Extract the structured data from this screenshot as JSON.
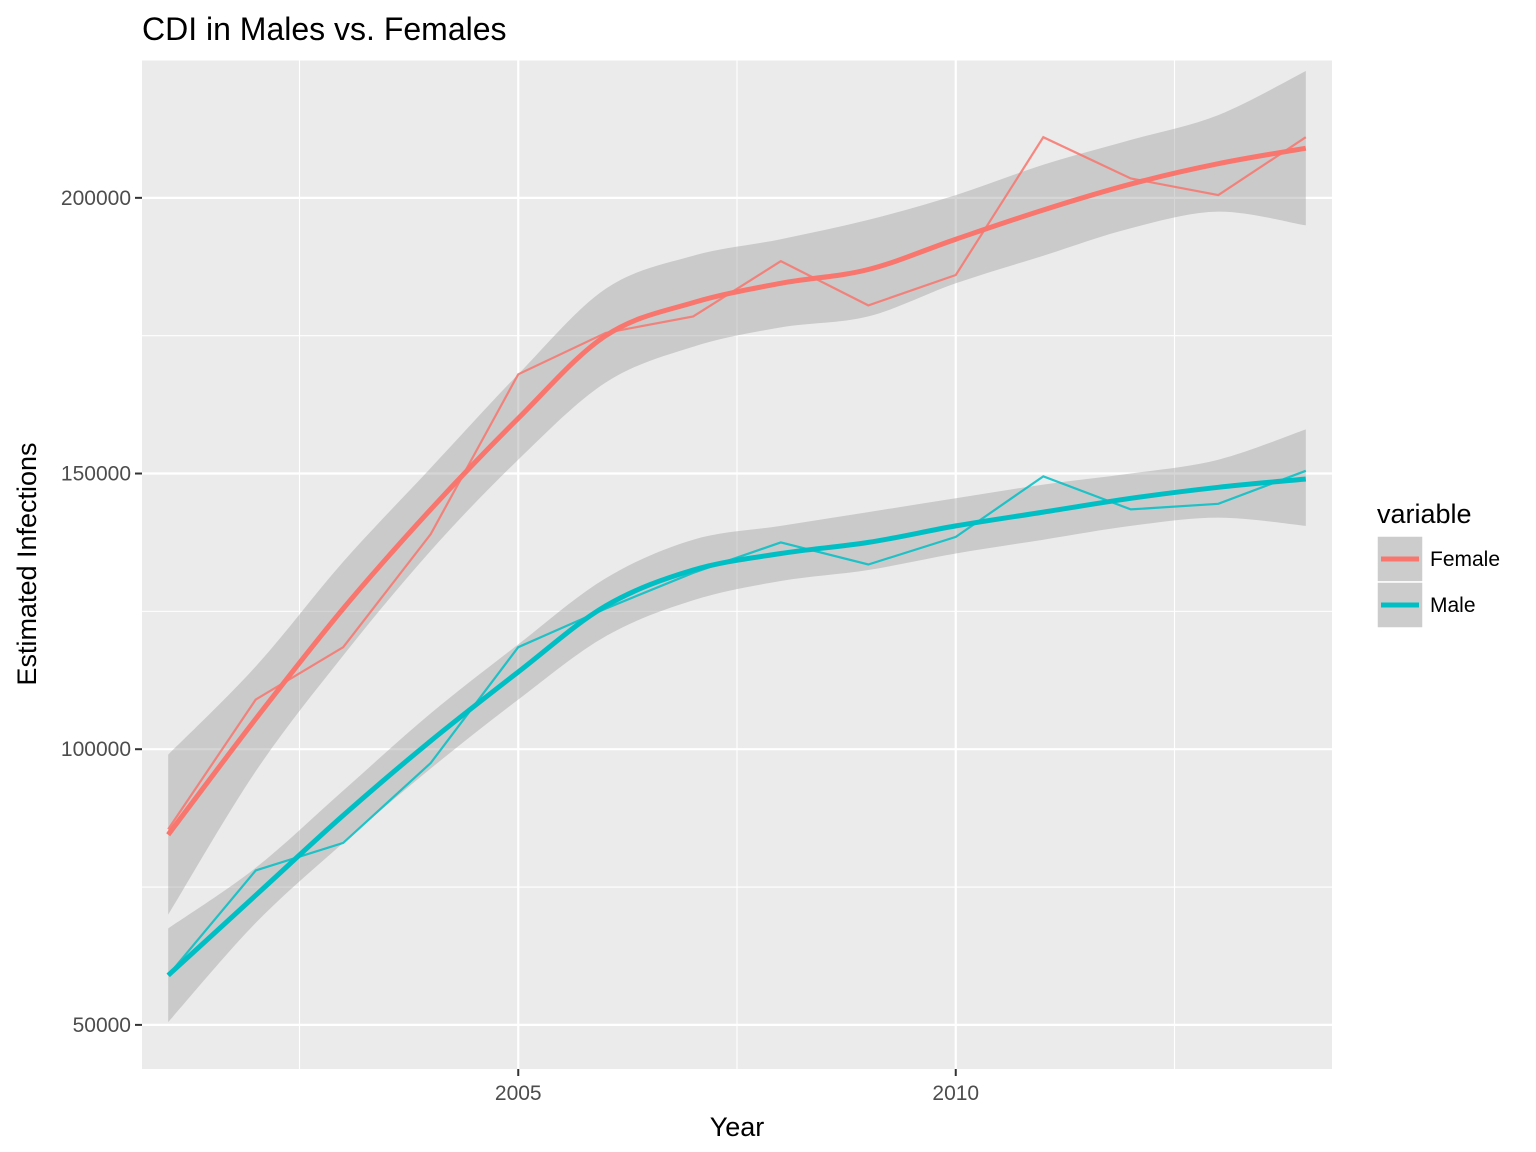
{
  "chart_data": {
    "type": "line",
    "title": "CDI in Males vs. Females",
    "xlabel": "Year",
    "ylabel": "Estimated Infections",
    "xlim": [
      2000.7,
      2014.3
    ],
    "ylim": [
      42000,
      225000
    ],
    "x_ticks": [
      2005,
      2010
    ],
    "x_tick_labels": [
      "2005",
      "2010"
    ],
    "x_minor_ticks": [
      2002.5,
      2007.5,
      2012.5
    ],
    "y_ticks": [
      50000,
      100000,
      150000,
      200000
    ],
    "y_tick_labels": [
      "50000",
      "100000",
      "150000",
      "200000"
    ],
    "y_minor_ticks": [
      75000,
      125000,
      175000,
      225000
    ],
    "grid": true,
    "legend": {
      "title": "variable",
      "position": "right"
    },
    "x": [
      2001,
      2002,
      2003,
      2004,
      2005,
      2006,
      2007,
      2008,
      2009,
      2010,
      2011,
      2012,
      2013,
      2014
    ],
    "series": [
      {
        "name": "Female",
        "color": "#F8766D",
        "values": [
          85500,
          109000,
          118500,
          139000,
          168000,
          175500,
          178500,
          188500,
          180500,
          186000,
          211000,
          203500,
          200500,
          211000
        ],
        "smooth": {
          "x": [
            2001,
            2002,
            2003,
            2004,
            2005,
            2006,
            2007,
            2008,
            2009,
            2010,
            2011,
            2012,
            2013,
            2014
          ],
          "fit": [
            84500,
            105500,
            125500,
            143500,
            160000,
            175000,
            181000,
            184500,
            187000,
            192500,
            197800,
            202500,
            206200,
            209000
          ],
          "lower": [
            70000,
            96000,
            117000,
            136000,
            152500,
            166500,
            173000,
            176500,
            178500,
            184500,
            189500,
            194500,
            197500,
            195000
          ],
          "upper": [
            99000,
            115000,
            134000,
            151000,
            168000,
            183500,
            189500,
            192500,
            196000,
            200500,
            206000,
            210500,
            215000,
            223000
          ]
        }
      },
      {
        "name": "Male",
        "color": "#00BFC4",
        "values": [
          59000,
          78000,
          83000,
          97500,
          118500,
          125500,
          132000,
          137500,
          133500,
          138500,
          149500,
          143500,
          144500,
          150500
        ],
        "smooth": {
          "x": [
            2001,
            2002,
            2003,
            2004,
            2005,
            2006,
            2007,
            2008,
            2009,
            2010,
            2011,
            2012,
            2013,
            2014
          ],
          "fit": [
            59000,
            73500,
            88000,
            101500,
            114000,
            126000,
            132500,
            135500,
            137500,
            140500,
            143000,
            145500,
            147500,
            149000
          ],
          "lower": [
            50500,
            68500,
            83000,
            96500,
            109000,
            120500,
            127000,
            130500,
            132500,
            135500,
            138000,
            140500,
            142000,
            140500
          ],
          "upper": [
            67500,
            78500,
            92500,
            106500,
            119000,
            131000,
            138000,
            140500,
            143000,
            145500,
            148000,
            150000,
            152500,
            158000
          ]
        }
      }
    ]
  }
}
